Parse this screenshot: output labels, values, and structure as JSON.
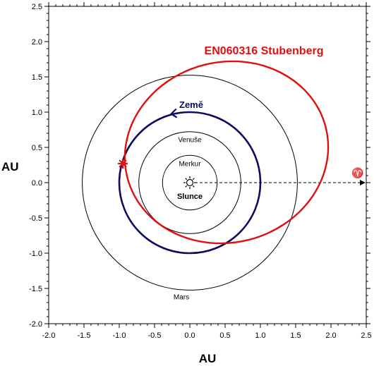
{
  "chart_data": {
    "type": "orbit-diagram",
    "xlabel": "AU",
    "ylabel": "AU",
    "xlim": [
      -2.0,
      2.5
    ],
    "ylim": [
      -2.0,
      2.5
    ],
    "x_ticks": [
      "-2.0",
      "-1.5",
      "-1.0",
      "-0.5",
      "0.0",
      "0.5",
      "1.0",
      "1.5",
      "2.0",
      "2.5"
    ],
    "y_ticks": [
      "2.5",
      "2.0",
      "1.5",
      "1.0",
      "0.5",
      "0.0",
      "-0.5",
      "-1.0",
      "-1.5",
      "-2.0"
    ],
    "grid": false,
    "sun": {
      "label": "Slunce",
      "x": 0,
      "y": 0
    },
    "orbits": [
      {
        "label": "Merkur",
        "radius_au": 0.387,
        "color": "#000000"
      },
      {
        "label": "Venuše",
        "radius_au": 0.723,
        "color": "#000000"
      },
      {
        "label": "Země",
        "radius_au": 1.0,
        "color": "#0c0c5c"
      },
      {
        "label": "Mars",
        "radius_au": 1.524,
        "color": "#000000"
      }
    ],
    "meteoroid_orbit": {
      "label": "EN060316 Stubenberg",
      "color": "#e01010",
      "center_au": [
        0.52,
        0.43
      ],
      "semi_axes_au": [
        1.45,
        1.28
      ],
      "impact_point_au": [
        -0.95,
        0.27
      ]
    },
    "vernal_equinox": {
      "symbol": "♈",
      "direction": "+x"
    }
  }
}
